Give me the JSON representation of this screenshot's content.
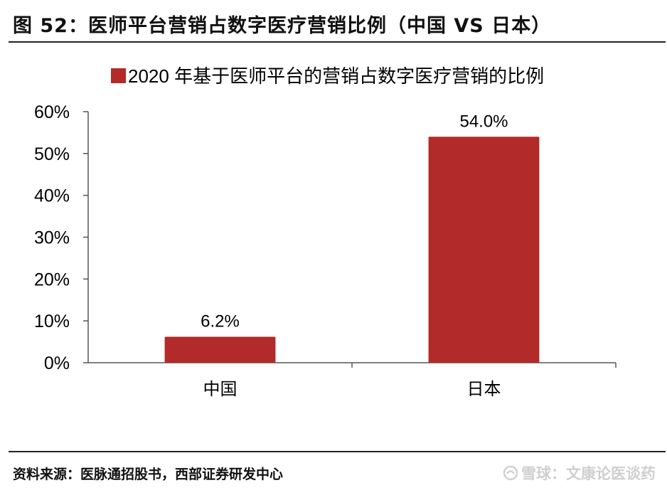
{
  "figure": {
    "title": "图 52：医师平台营销占数字医疗营销比例（中国 VS 日本）",
    "source": "资料来源：医脉通招股书，西部证券研发中心",
    "watermark": "雪球：文康论医谈药"
  },
  "chart_data": {
    "type": "bar",
    "categories": [
      "中国",
      "日本"
    ],
    "series": [
      {
        "name": "2020 年基于医师平台的营销占数字医疗营销的比例",
        "values": [
          6.2,
          54.0
        ],
        "color": "#B22A29"
      }
    ],
    "data_labels": [
      "6.2%",
      "54.0%"
    ],
    "ylim": [
      0,
      60
    ],
    "yticks": [
      0,
      10,
      20,
      30,
      40,
      50,
      60
    ],
    "ytick_labels": [
      "0%",
      "10%",
      "20%",
      "30%",
      "40%",
      "50%",
      "60%"
    ],
    "xlabel": "",
    "ylabel": "",
    "grid": false,
    "legend_position": "top"
  }
}
